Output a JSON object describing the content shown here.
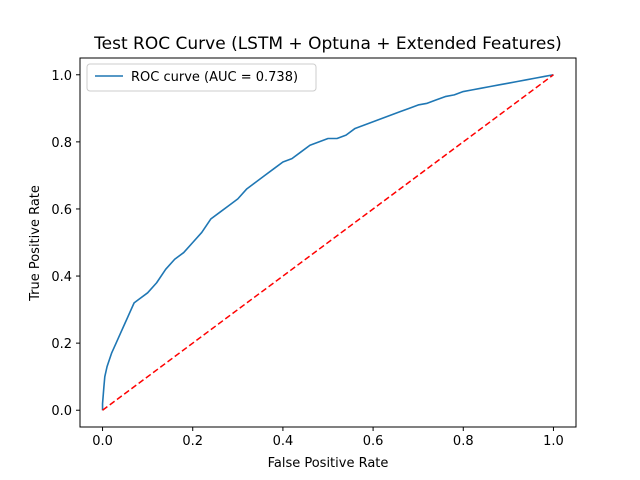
{
  "chart_data": {
    "type": "line",
    "title": "Test ROC Curve (LSTM + Optuna + Extended Features)",
    "xlabel": "False Positive Rate",
    "ylabel": "True Positive Rate",
    "xlim": [
      -0.05,
      1.05
    ],
    "ylim": [
      -0.05,
      1.05
    ],
    "xticks": [
      0.0,
      0.2,
      0.4,
      0.6,
      0.8,
      1.0
    ],
    "yticks": [
      0.0,
      0.2,
      0.4,
      0.6,
      0.8,
      1.0
    ],
    "xtick_labels": [
      "0.0",
      "0.2",
      "0.4",
      "0.6",
      "0.8",
      "1.0"
    ],
    "ytick_labels": [
      "0.0",
      "0.2",
      "0.4",
      "0.6",
      "0.8",
      "1.0"
    ],
    "grid": false,
    "legend": {
      "placement": "top-left",
      "entries": [
        "ROC curve (AUC = 0.738)"
      ]
    },
    "series": [
      {
        "name": "ROC curve (AUC = 0.738)",
        "color": "#1f77b4",
        "style": "solid",
        "x": [
          0.0,
          0.0,
          0.003,
          0.005,
          0.01,
          0.015,
          0.02,
          0.03,
          0.04,
          0.05,
          0.06,
          0.07,
          0.08,
          0.1,
          0.12,
          0.14,
          0.16,
          0.18,
          0.2,
          0.22,
          0.24,
          0.26,
          0.28,
          0.3,
          0.32,
          0.34,
          0.36,
          0.38,
          0.4,
          0.42,
          0.44,
          0.46,
          0.48,
          0.5,
          0.52,
          0.54,
          0.56,
          0.58,
          0.6,
          0.62,
          0.64,
          0.66,
          0.68,
          0.7,
          0.72,
          0.74,
          0.76,
          0.78,
          0.8,
          0.82,
          0.84,
          0.86,
          0.88,
          0.9,
          0.92,
          0.94,
          0.96,
          0.98,
          1.0
        ],
        "y": [
          0.0,
          0.02,
          0.07,
          0.1,
          0.13,
          0.15,
          0.17,
          0.2,
          0.23,
          0.26,
          0.29,
          0.32,
          0.33,
          0.35,
          0.38,
          0.42,
          0.45,
          0.47,
          0.5,
          0.53,
          0.57,
          0.59,
          0.61,
          0.63,
          0.66,
          0.68,
          0.7,
          0.72,
          0.74,
          0.75,
          0.77,
          0.79,
          0.8,
          0.81,
          0.81,
          0.82,
          0.84,
          0.85,
          0.86,
          0.87,
          0.88,
          0.89,
          0.9,
          0.91,
          0.915,
          0.925,
          0.935,
          0.94,
          0.95,
          0.955,
          0.96,
          0.965,
          0.97,
          0.975,
          0.98,
          0.985,
          0.99,
          0.995,
          1.0
        ]
      },
      {
        "name": "",
        "color": "#ff0000",
        "style": "dashed",
        "x": [
          0.0,
          1.0
        ],
        "y": [
          0.0,
          1.0
        ]
      }
    ]
  }
}
